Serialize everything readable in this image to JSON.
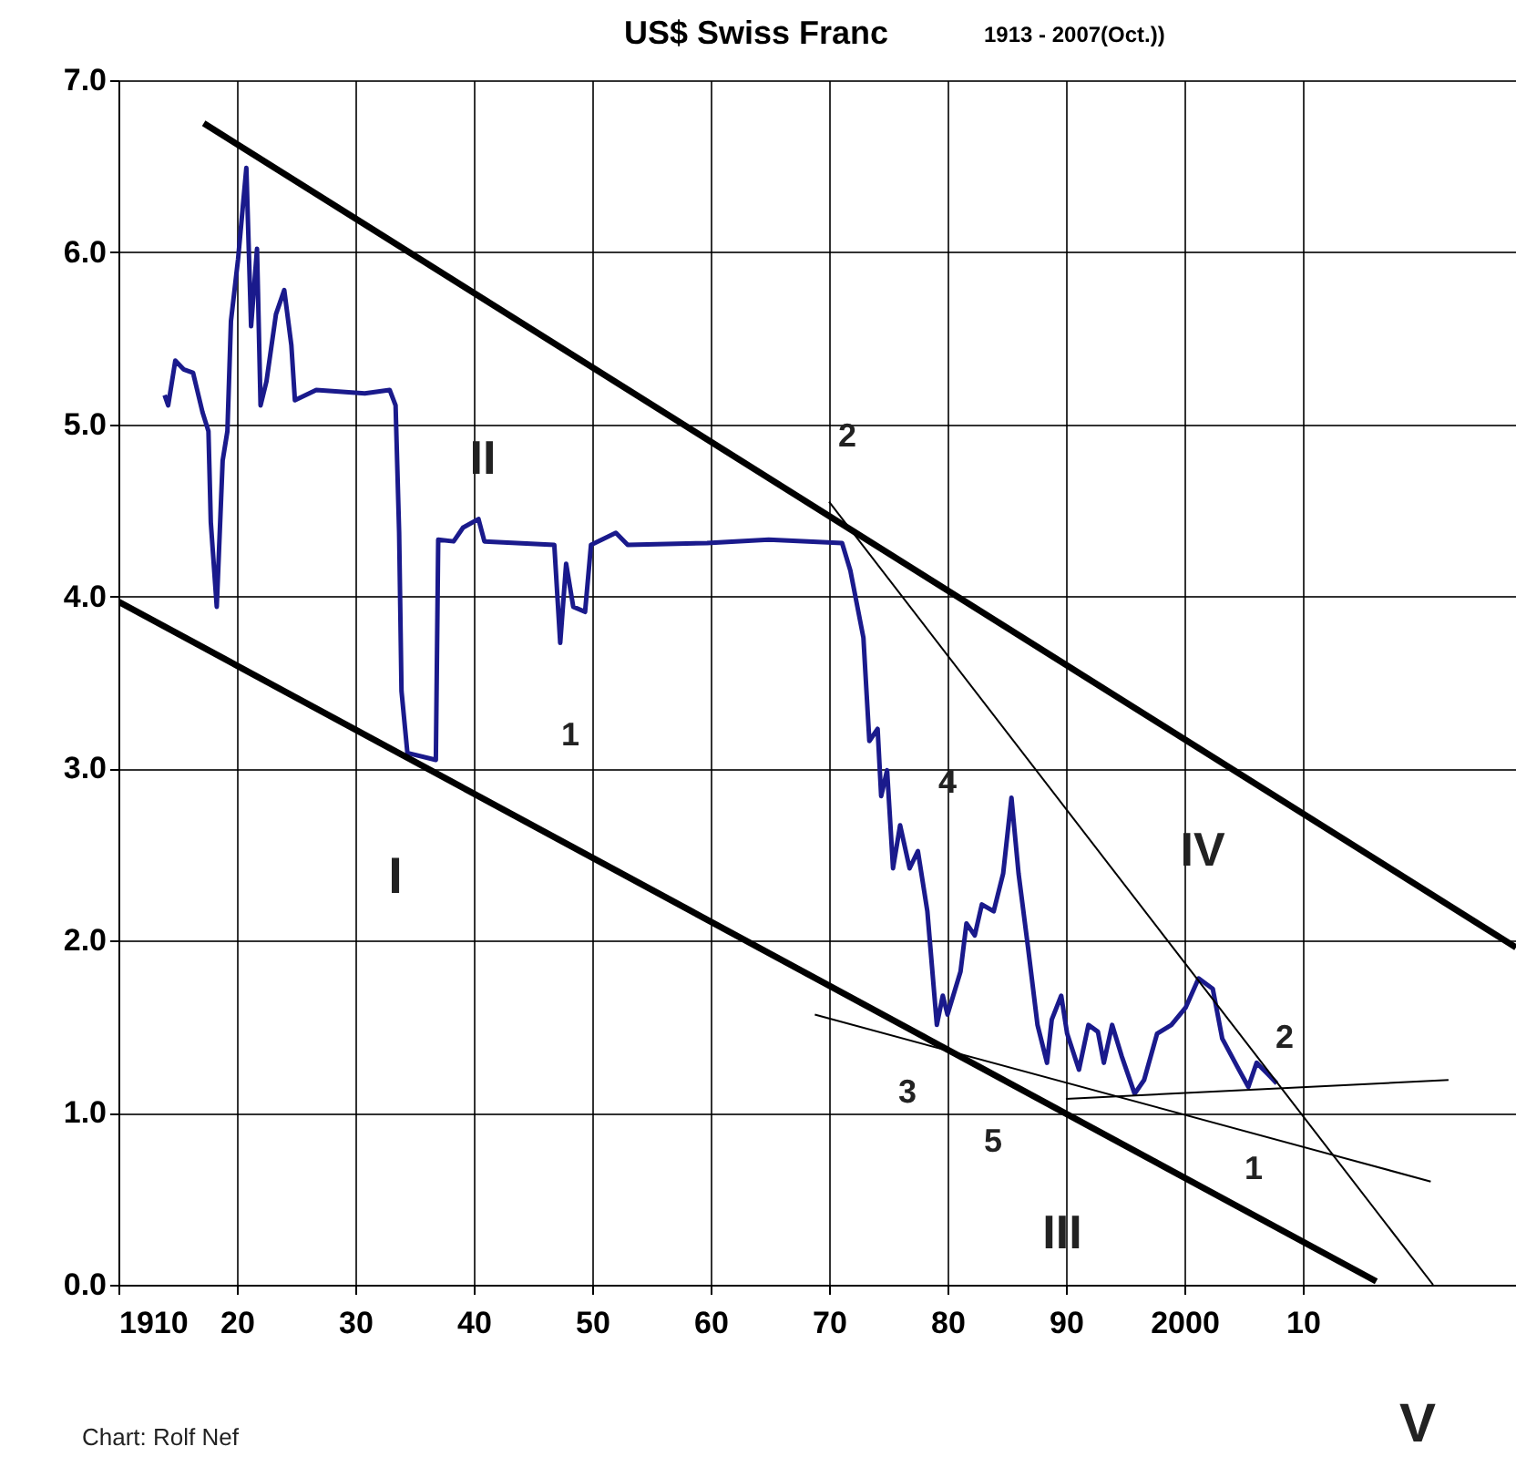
{
  "chart_data": {
    "type": "line",
    "title": "US$ Swiss Franc",
    "subtitle": "1913 - 2007(Oct.))",
    "xlim": [
      1910,
      2028
    ],
    "ylim": [
      0,
      7
    ],
    "xticks": [
      {
        "value": 1910,
        "label": "1910"
      },
      {
        "value": 1920,
        "label": "20"
      },
      {
        "value": 1930,
        "label": "30"
      },
      {
        "value": 1940,
        "label": "40"
      },
      {
        "value": 1950,
        "label": "50"
      },
      {
        "value": 1960,
        "label": "60"
      },
      {
        "value": 1970,
        "label": "70"
      },
      {
        "value": 1980,
        "label": "80"
      },
      {
        "value": 1990,
        "label": "90"
      },
      {
        "value": 2000,
        "label": "2000"
      },
      {
        "value": 2010,
        "label": "10"
      }
    ],
    "yticks": [
      {
        "value": 0,
        "label": "0.0"
      },
      {
        "value": 1,
        "label": "1.0"
      },
      {
        "value": 2,
        "label": "2.0"
      },
      {
        "value": 3,
        "label": "3.0"
      },
      {
        "value": 4,
        "label": "4.0"
      },
      {
        "value": 5,
        "label": "5.0"
      },
      {
        "value": 6,
        "label": "6.0"
      },
      {
        "value": 7,
        "label": "7.0"
      }
    ],
    "grid": true,
    "marker": "none",
    "line_style": "solid",
    "series": [
      {
        "color": "#1a1a8c",
        "x": [
          1913.9,
          1914.2,
          1914.8,
          1915.5,
          1916.3,
          1917.1,
          1917.6,
          1917.8,
          1918.3,
          1918.8,
          1919.2,
          1919.5,
          1920.1,
          1920.8,
          1921.2,
          1921.7,
          1922.0,
          1922.5,
          1923.3,
          1924.0,
          1924.6,
          1924.9,
          1926.7,
          1930.8,
          1932.9,
          1933.4,
          1933.7,
          1933.9,
          1934.4,
          1936.8,
          1937.0,
          1938.3,
          1939.1,
          1940.4,
          1940.9,
          1946.8,
          1947.3,
          1947.8,
          1948.4,
          1949.4,
          1949.9,
          1952.0,
          1953.0,
          1959.7,
          1964.9,
          1971.1,
          1971.8,
          1972.9,
          1973.4,
          1974.1,
          1974.4,
          1974.9,
          1975.4,
          1976.0,
          1976.8,
          1977.5,
          1978.3,
          1979.1,
          1979.6,
          1980.0,
          1981.1,
          1981.6,
          1982.3,
          1982.9,
          1983.9,
          1984.7,
          1985.4,
          1986.0,
          1986.8,
          1987.6,
          1988.4,
          1988.8,
          1989.6,
          1990.1,
          1991.1,
          1991.9,
          1992.7,
          1993.2,
          1993.9,
          1994.7,
          1995.8,
          1996.6,
          1997.7,
          1998.9,
          2000.1,
          2001.2,
          2002.4,
          2003.2,
          2004.6,
          2005.4,
          2006.1,
          2007.1,
          2007.8
        ],
        "values": [
          5.17,
          5.11,
          5.37,
          5.32,
          5.3,
          5.07,
          4.96,
          4.43,
          3.94,
          4.79,
          4.96,
          5.6,
          5.96,
          6.49,
          5.57,
          6.02,
          5.11,
          5.25,
          5.64,
          5.78,
          5.46,
          5.14,
          5.2,
          5.18,
          5.2,
          5.11,
          4.37,
          3.45,
          3.09,
          3.05,
          4.33,
          4.32,
          4.4,
          4.45,
          4.32,
          4.3,
          3.73,
          4.19,
          3.94,
          3.91,
          4.3,
          4.37,
          4.3,
          4.31,
          4.33,
          4.31,
          4.15,
          3.76,
          3.16,
          3.23,
          2.84,
          2.99,
          2.42,
          2.67,
          2.42,
          2.52,
          2.17,
          1.51,
          1.68,
          1.57,
          1.82,
          2.1,
          2.03,
          2.21,
          2.17,
          2.39,
          2.83,
          2.39,
          1.96,
          1.51,
          1.29,
          1.54,
          1.68,
          1.46,
          1.25,
          1.51,
          1.47,
          1.29,
          1.51,
          1.33,
          1.11,
          1.19,
          1.46,
          1.51,
          1.61,
          1.78,
          1.72,
          1.43,
          1.25,
          1.15,
          1.29,
          1.22,
          1.17
        ]
      },
      {
        "type": "line",
        "color": "#000000",
        "x": [
          1917.2,
          2028
        ],
        "values": [
          6.75,
          1.96
        ]
      },
      {
        "type": "line",
        "color": "#000000",
        "x": [
          1910,
          2016.2
        ],
        "values": [
          3.97,
          0.02
        ]
      },
      {
        "type": "line",
        "color": "#000000",
        "x": [
          1970,
          2021
        ],
        "values": [
          4.55,
          0
        ]
      },
      {
        "type": "line",
        "color": "#000000",
        "x": [
          1968.8,
          2020.8
        ],
        "values": [
          1.57,
          0.6
        ]
      },
      {
        "type": "line",
        "color": "#000000",
        "x": [
          1990,
          2022.3
        ],
        "values": [
          1.08,
          1.19
        ]
      }
    ],
    "annotations": [
      "I",
      "II",
      "1",
      "2",
      "4",
      "IV",
      "3",
      "5",
      "III",
      "2",
      "1",
      "Chart: Rolf Nef",
      "V"
    ]
  }
}
